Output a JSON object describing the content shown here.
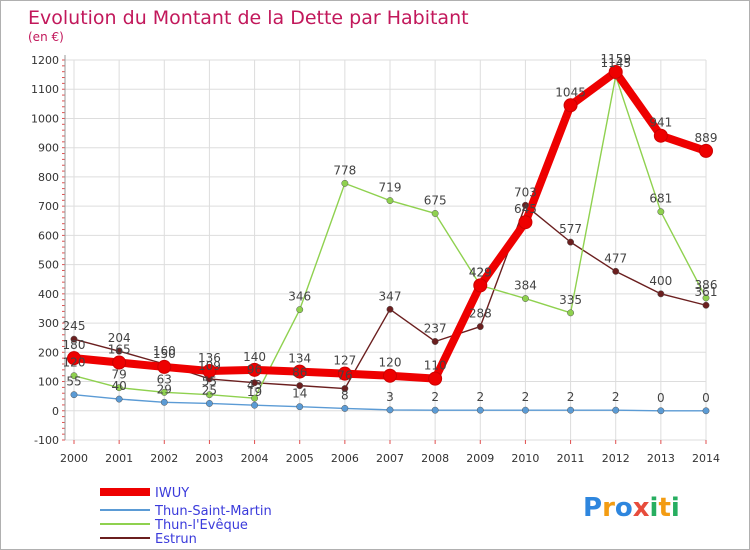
{
  "chart_data": {
    "type": "line",
    "title": "Evolution du Montant de la Dette par Habitant",
    "subtitle": "(en €)",
    "x": [
      "2000",
      "2001",
      "2002",
      "2003",
      "2004",
      "2005",
      "2006",
      "2007",
      "2008",
      "2009",
      "2010",
      "2011",
      "2012",
      "2013",
      "2014"
    ],
    "ylim": [
      -100,
      1200
    ],
    "yticks": [
      "-100",
      "0",
      "100",
      "200",
      "300",
      "400",
      "500",
      "600",
      "700",
      "800",
      "900",
      "1000",
      "1100",
      "1200"
    ],
    "grid": true,
    "legend_position": "bottom-left",
    "series": [
      {
        "name": "IWUY",
        "color": "#ee0000",
        "values": [
          180,
          165,
          150,
          136,
          140,
          134,
          127,
          120,
          110,
          429,
          645,
          1045,
          1159,
          941,
          889
        ],
        "labels": [
          "180",
          "165",
          "150",
          "136",
          "140",
          "134",
          "127",
          "120",
          "110",
          "429",
          "645",
          "1045",
          "1159",
          "941",
          "889"
        ]
      },
      {
        "name": "Thun-Saint-Martin",
        "color": "#5b9bd5",
        "values": [
          55,
          40,
          29,
          25,
          19,
          14,
          8,
          3,
          2,
          2,
          2,
          2,
          2,
          0,
          0
        ],
        "labels": [
          "55",
          "40",
          "29",
          "25",
          "19",
          "14",
          "8",
          "3",
          "2",
          "2",
          "2",
          "2",
          "2",
          "0",
          "0"
        ]
      },
      {
        "name": "Thun-l'Evêque",
        "color": "#8fd14f",
        "values": [
          120,
          79,
          63,
          55,
          43,
          346,
          778,
          719,
          675,
          429,
          384,
          335,
          1145,
          681,
          386
        ],
        "labels": [
          "120",
          "79",
          "63",
          "55",
          "43",
          "346",
          "778",
          "719",
          "675",
          "429",
          "384",
          "335",
          "1145",
          "681",
          "386"
        ]
      },
      {
        "name": "Estrun",
        "color": "#6b1f1f",
        "values": [
          245,
          204,
          160,
          109,
          96,
          86,
          76,
          347,
          237,
          288,
          703,
          577,
          477,
          400,
          361
        ],
        "labels": [
          "245",
          "204",
          "160",
          "109",
          "96",
          "86",
          "76",
          "347",
          "237",
          "288",
          "703",
          "577",
          "477",
          "400",
          "361"
        ]
      }
    ]
  },
  "branding": {
    "logo_text": "Proxiti"
  }
}
